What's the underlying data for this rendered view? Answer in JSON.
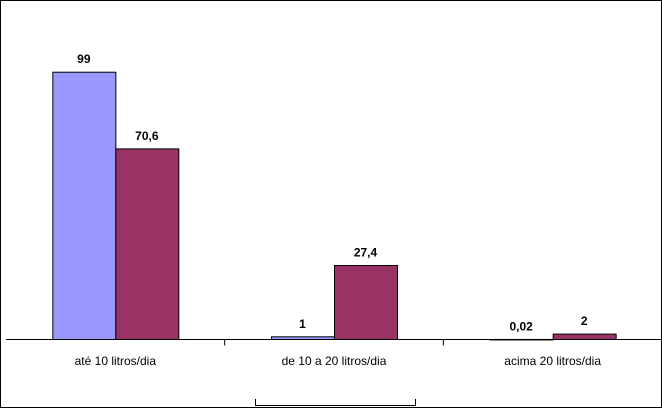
{
  "chart_data": {
    "type": "bar",
    "categories": [
      "até 10 litros/dia",
      "de 10 a 20 litros/dia",
      "acima 20 litros/dia"
    ],
    "series": [
      {
        "values": [
          99,
          1,
          0.02
        ],
        "labels": [
          "99",
          "1",
          "0,02"
        ],
        "color": "#9999ff"
      },
      {
        "values": [
          70.6,
          27.4,
          2
        ],
        "labels": [
          "70,6",
          "27,4",
          "2"
        ],
        "color": "#993366"
      }
    ],
    "ylim": [
      0,
      115
    ],
    "grid": false,
    "title": "",
    "xlabel": "",
    "ylabel": ""
  }
}
